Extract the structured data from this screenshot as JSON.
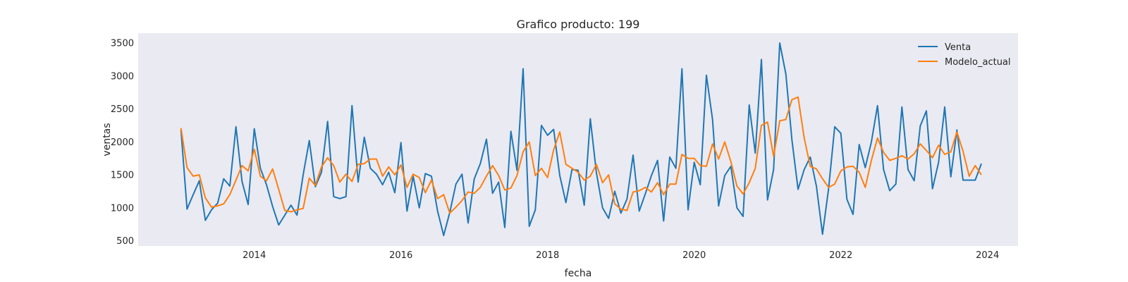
{
  "chart_data": {
    "type": "line",
    "title": "Grafico producto: 199",
    "xlabel": "fecha",
    "ylabel": "ventas",
    "x_start": "2013-01",
    "x_end": "2023-12",
    "xlim": [
      "2012-06",
      "2024-06"
    ],
    "ylim": [
      420,
      3650
    ],
    "xticks": [
      "2014",
      "2016",
      "2018",
      "2020",
      "2022",
      "2024"
    ],
    "yticks": [
      500,
      1000,
      1500,
      2000,
      2500,
      3000,
      3500
    ],
    "grid": false,
    "background": "#eaeaf2",
    "legend_position": "top-right",
    "series": [
      {
        "name": "Venta",
        "color": "#1f77b4",
        "values": [
          2180,
          980,
          1200,
          1410,
          810,
          970,
          1070,
          1440,
          1330,
          2230,
          1400,
          1050,
          2200,
          1600,
          1350,
          1020,
          740,
          890,
          1040,
          890,
          1500,
          2020,
          1320,
          1540,
          2310,
          1170,
          1140,
          1170,
          2550,
          1390,
          2070,
          1600,
          1510,
          1350,
          1540,
          1230,
          1990,
          950,
          1480,
          1000,
          1520,
          1480,
          950,
          580,
          930,
          1360,
          1510,
          770,
          1440,
          1670,
          2040,
          1220,
          1390,
          700,
          2160,
          1570,
          3110,
          720,
          970,
          2250,
          2100,
          2190,
          1490,
          1080,
          1580,
          1570,
          1040,
          2350,
          1530,
          1000,
          840,
          1250,
          920,
          1130,
          1800,
          950,
          1210,
          1490,
          1720,
          800,
          1770,
          1600,
          3110,
          970,
          1690,
          1350,
          3010,
          2340,
          1030,
          1490,
          1630,
          1000,
          870,
          2560,
          1830,
          3250,
          1120,
          1580,
          3500,
          3030,
          2030,
          1280,
          1580,
          1770,
          1330,
          600,
          1290,
          2230,
          2130,
          1130,
          900,
          1960,
          1610,
          2000,
          2550,
          1580,
          1260,
          1360,
          2530,
          1580,
          1410,
          2240,
          2470,
          1290,
          1690,
          2530,
          1470,
          2180,
          1420,
          1420,
          1420,
          1670
        ]
      },
      {
        "name": "Modelo_actual",
        "color": "#ff7f0e",
        "values": [
          2210,
          1610,
          1480,
          1500,
          1150,
          1010,
          1030,
          1060,
          1200,
          1420,
          1640,
          1560,
          1890,
          1480,
          1410,
          1590,
          1280,
          960,
          940,
          970,
          990,
          1450,
          1340,
          1620,
          1760,
          1640,
          1390,
          1510,
          1400,
          1660,
          1670,
          1740,
          1740,
          1480,
          1620,
          1500,
          1650,
          1310,
          1510,
          1460,
          1230,
          1420,
          1140,
          1200,
          920,
          1010,
          1110,
          1240,
          1220,
          1310,
          1480,
          1640,
          1490,
          1270,
          1300,
          1490,
          1850,
          2000,
          1490,
          1600,
          1460,
          1880,
          2150,
          1660,
          1600,
          1540,
          1420,
          1480,
          1660,
          1380,
          1500,
          1060,
          980,
          960,
          1240,
          1260,
          1310,
          1240,
          1380,
          1200,
          1360,
          1360,
          1810,
          1750,
          1750,
          1640,
          1630,
          1970,
          1740,
          2000,
          1700,
          1330,
          1210,
          1380,
          1600,
          2250,
          2300,
          1780,
          2320,
          2340,
          2640,
          2680,
          2060,
          1630,
          1590,
          1440,
          1310,
          1360,
          1560,
          1620,
          1630,
          1540,
          1310,
          1720,
          2060,
          1840,
          1720,
          1750,
          1790,
          1740,
          1820,
          1970,
          1870,
          1760,
          1950,
          1810,
          1850,
          2150,
          1860,
          1480,
          1640,
          1500
        ]
      }
    ]
  }
}
